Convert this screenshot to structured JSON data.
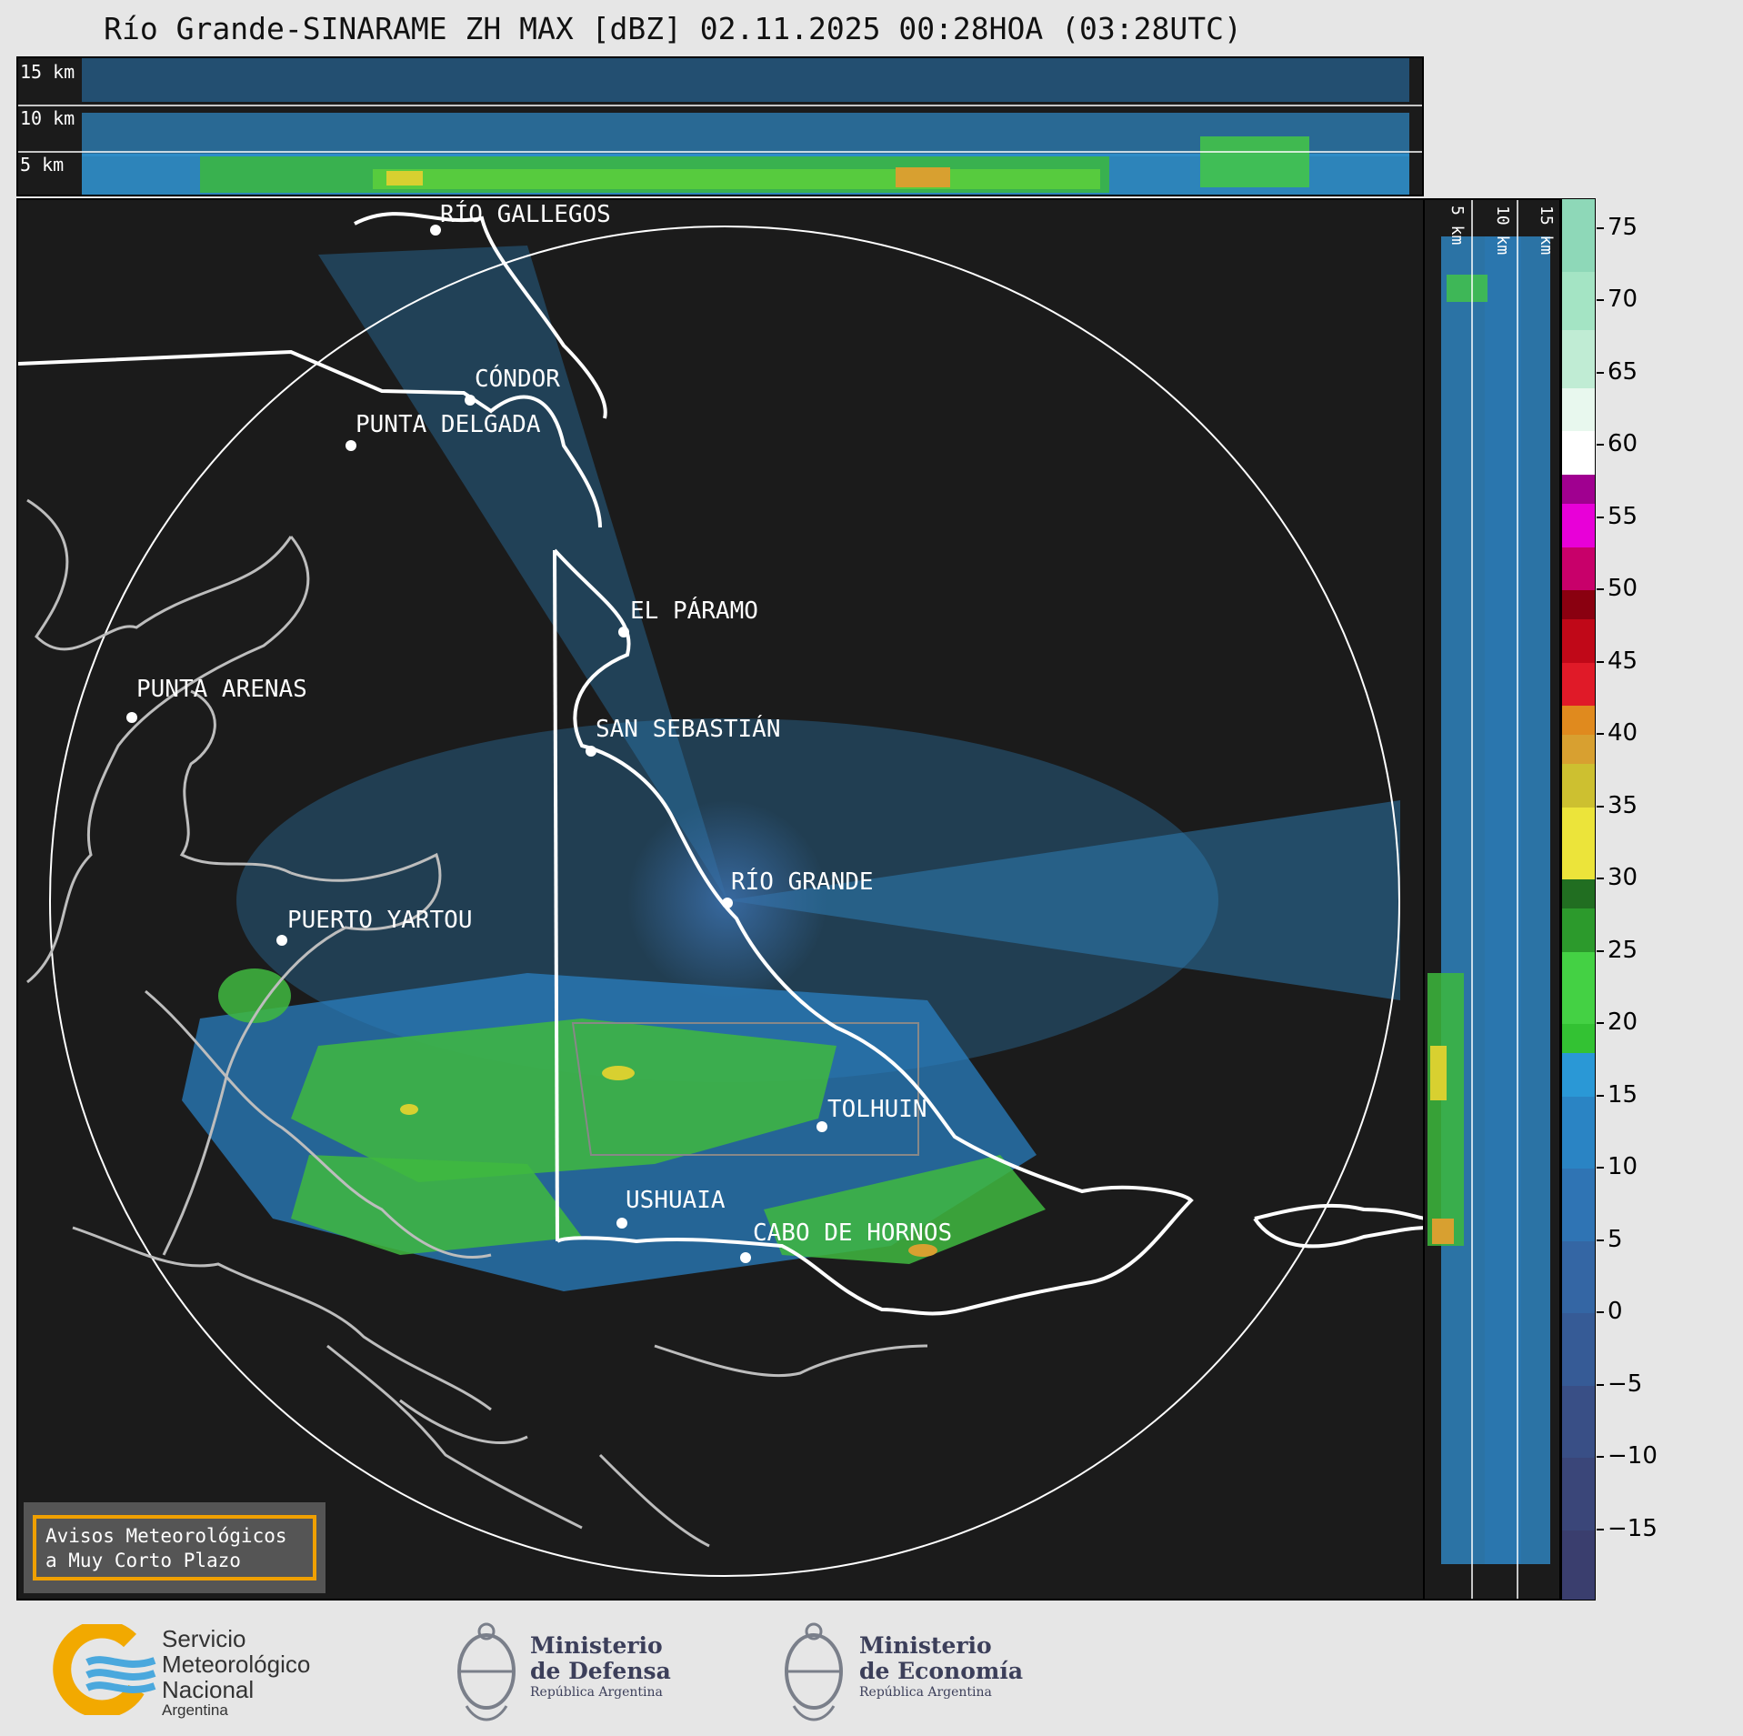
{
  "title": "Río Grande-SINARAME ZH MAX [dBZ] 02.11.2025 00:28HOA (03:28UTC)",
  "top_profile": {
    "labels": [
      "15 km",
      "10 km",
      "5 km"
    ]
  },
  "side_profile": {
    "labels": [
      "5 km",
      "10 km",
      "15 km"
    ]
  },
  "cities": [
    {
      "name": "RÍO GALLEGOS"
    },
    {
      "name": "CÓNDOR"
    },
    {
      "name": "PUNTA DELGADA"
    },
    {
      "name": "EL PÁRAMO"
    },
    {
      "name": "PUNTA ARENAS"
    },
    {
      "name": "SAN SEBASTIÁN"
    },
    {
      "name": "RÍO GRANDE"
    },
    {
      "name": "PUERTO YARTOU"
    },
    {
      "name": "TOLHUIN"
    },
    {
      "name": "USHUAIA"
    },
    {
      "name": "CABO DE HORNOS"
    }
  ],
  "colorbar": {
    "unit": "dBZ",
    "ticks": [
      "75",
      "70",
      "65",
      "60",
      "55",
      "50",
      "45",
      "40",
      "35",
      "30",
      "25",
      "20",
      "15",
      "10",
      "5",
      "0",
      "−5",
      "−10",
      "−15"
    ],
    "tick_values": [
      75,
      70,
      65,
      60,
      55,
      50,
      45,
      40,
      35,
      30,
      25,
      20,
      15,
      10,
      5,
      0,
      -5,
      -10,
      -15
    ],
    "min": -20,
    "max": 77
  },
  "warning_box": {
    "line1": "Avisos Meteorológicos",
    "line2": "a Muy Corto Plazo"
  },
  "logos": {
    "smn": {
      "line1": "Servicio",
      "line2": "Meteorológico",
      "line3": "Nacional",
      "line4": "Argentina"
    },
    "defensa": {
      "line1": "Ministerio",
      "line2": "de Defensa",
      "line3": "República Argentina"
    },
    "economia": {
      "line1": "Ministerio",
      "line2": "de Economía",
      "line3": "República Argentina"
    }
  }
}
